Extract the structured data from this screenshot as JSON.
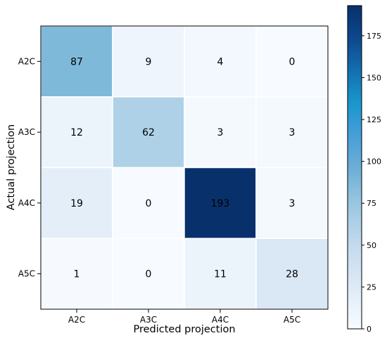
{
  "chart_data": {
    "type": "heatmap",
    "xlabel": "Predicted projection",
    "ylabel": "Actual projection",
    "x_categories": [
      "A2C",
      "A3C",
      "A4C",
      "A5C"
    ],
    "y_categories": [
      "A2C",
      "A3C",
      "A4C",
      "A5C"
    ],
    "values": [
      [
        87,
        9,
        4,
        0
      ],
      [
        12,
        62,
        3,
        3
      ],
      [
        19,
        0,
        193,
        3
      ],
      [
        1,
        0,
        11,
        28
      ]
    ],
    "colorbar": {
      "min": 0,
      "max": 193,
      "ticks": [
        0,
        25,
        50,
        75,
        100,
        125,
        150,
        175
      ],
      "colormap": "Blues"
    },
    "grid": true,
    "legend": "colorbar-right"
  }
}
